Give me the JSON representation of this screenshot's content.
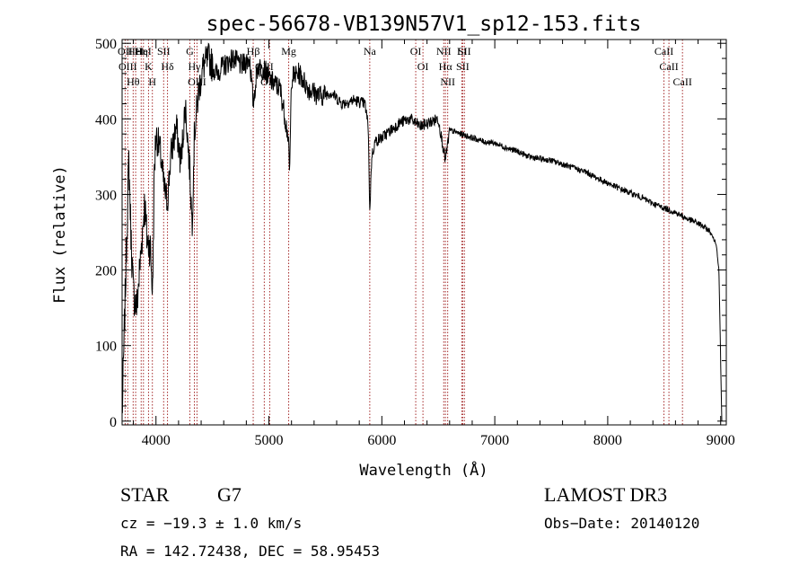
{
  "chart_data": {
    "type": "line",
    "title": "spec-56678-VB139N57V1_sp12-153.fits",
    "xlabel": "Wavelength (Å)",
    "ylabel": "Flux (relative)",
    "xlim": [
      3700,
      9050
    ],
    "ylim": [
      -5,
      505
    ],
    "xticks": [
      4000,
      5000,
      6000,
      7000,
      8000,
      9000
    ],
    "yticks": [
      0,
      100,
      200,
      300,
      400,
      500
    ],
    "line_color": "#000000",
    "marker_color": "#a52a2a",
    "spectrum_anchors": [
      [
        3700,
        5
      ],
      [
        3720,
        120
      ],
      [
        3740,
        240
      ],
      [
        3760,
        345
      ],
      [
        3780,
        240
      ],
      [
        3800,
        170
      ],
      [
        3830,
        150
      ],
      [
        3860,
        210
      ],
      [
        3880,
        250
      ],
      [
        3900,
        290
      ],
      [
        3920,
        240
      ],
      [
        3950,
        230
      ],
      [
        3970,
        170
      ],
      [
        3985,
        330
      ],
      [
        4000,
        380
      ],
      [
        4040,
        355
      ],
      [
        4070,
        310
      ],
      [
        4101,
        290
      ],
      [
        4130,
        350
      ],
      [
        4180,
        390
      ],
      [
        4220,
        340
      ],
      [
        4260,
        420
      ],
      [
        4300,
        330
      ],
      [
        4320,
        260
      ],
      [
        4340,
        380
      ],
      [
        4380,
        440
      ],
      [
        4420,
        470
      ],
      [
        4470,
        480
      ],
      [
        4530,
        460
      ],
      [
        4600,
        470
      ],
      [
        4680,
        480
      ],
      [
        4760,
        470
      ],
      [
        4830,
        480
      ],
      [
        4861,
        420
      ],
      [
        4900,
        470
      ],
      [
        4960,
        465
      ],
      [
        5020,
        450
      ],
      [
        5100,
        440
      ],
      [
        5167,
        380
      ],
      [
        5184,
        330
      ],
      [
        5200,
        455
      ],
      [
        5270,
        460
      ],
      [
        5350,
        440
      ],
      [
        5450,
        430
      ],
      [
        5550,
        435
      ],
      [
        5650,
        420
      ],
      [
        5750,
        425
      ],
      [
        5850,
        420
      ],
      [
        5880,
        390
      ],
      [
        5893,
        275
      ],
      [
        5910,
        350
      ],
      [
        5940,
        370
      ],
      [
        6000,
        375
      ],
      [
        6080,
        385
      ],
      [
        6160,
        395
      ],
      [
        6250,
        400
      ],
      [
        6340,
        390
      ],
      [
        6420,
        395
      ],
      [
        6500,
        400
      ],
      [
        6563,
        345
      ],
      [
        6600,
        385
      ],
      [
        6700,
        380
      ],
      [
        6800,
        375
      ],
      [
        6900,
        370
      ],
      [
        7000,
        368
      ],
      [
        7100,
        362
      ],
      [
        7200,
        357
      ],
      [
        7300,
        350
      ],
      [
        7400,
        347
      ],
      [
        7500,
        345
      ],
      [
        7600,
        340
      ],
      [
        7700,
        335
      ],
      [
        7800,
        330
      ],
      [
        7900,
        322
      ],
      [
        8000,
        315
      ],
      [
        8100,
        308
      ],
      [
        8200,
        302
      ],
      [
        8300,
        296
      ],
      [
        8400,
        288
      ],
      [
        8500,
        282
      ],
      [
        8600,
        276
      ],
      [
        8700,
        268
      ],
      [
        8800,
        262
      ],
      [
        8900,
        252
      ],
      [
        8960,
        235
      ],
      [
        8985,
        200
      ],
      [
        9000,
        80
      ],
      [
        9010,
        0
      ]
    ],
    "spectral_lines": [
      {
        "wavelength": 3727,
        "label": "OII"
      },
      {
        "wavelength": 3750,
        "label": "OIII"
      },
      {
        "wavelength": 3798,
        "label": "Hθ"
      },
      {
        "wavelength": 3820,
        "label": "HeI"
      },
      {
        "wavelength": 3869,
        "label": "Hη"
      },
      {
        "wavelength": 3889,
        "label": "HeI"
      },
      {
        "wavelength": 3934,
        "label": "K"
      },
      {
        "wavelength": 3968,
        "label": "H"
      },
      {
        "wavelength": 4068,
        "label": "SII"
      },
      {
        "wavelength": 4102,
        "label": "Hδ"
      },
      {
        "wavelength": 4300,
        "label": "G"
      },
      {
        "wavelength": 4340,
        "label": "Hγ"
      },
      {
        "wavelength": 4363,
        "label": "OIII"
      },
      {
        "wavelength": 4861,
        "label": "Hβ"
      },
      {
        "wavelength": 4959,
        "label": "OIII"
      },
      {
        "wavelength": 5007,
        "label": "OIII"
      },
      {
        "wavelength": 5175,
        "label": "Mg"
      },
      {
        "wavelength": 5893,
        "label": "Na"
      },
      {
        "wavelength": 6300,
        "label": "OI"
      },
      {
        "wavelength": 6364,
        "label": "OI"
      },
      {
        "wavelength": 6548,
        "label": "NII"
      },
      {
        "wavelength": 6563,
        "label": "Hα"
      },
      {
        "wavelength": 6583,
        "label": "NII"
      },
      {
        "wavelength": 6708,
        "label": "Li"
      },
      {
        "wavelength": 6716,
        "label": "SII"
      },
      {
        "wavelength": 6731,
        "label": "SII"
      },
      {
        "wavelength": 8498,
        "label": "CaII"
      },
      {
        "wavelength": 8542,
        "label": "CaII"
      },
      {
        "wavelength": 8662,
        "label": "CaII"
      }
    ]
  },
  "footer": {
    "object_class": "STAR",
    "subclass": "G7",
    "survey": "LAMOST DR3",
    "redshift": "cz = −19.3 ± 1.0 km/s",
    "obs_date": "Obs−Date: 20140120",
    "coords": "RA = 142.72438, DEC =  58.95453"
  }
}
